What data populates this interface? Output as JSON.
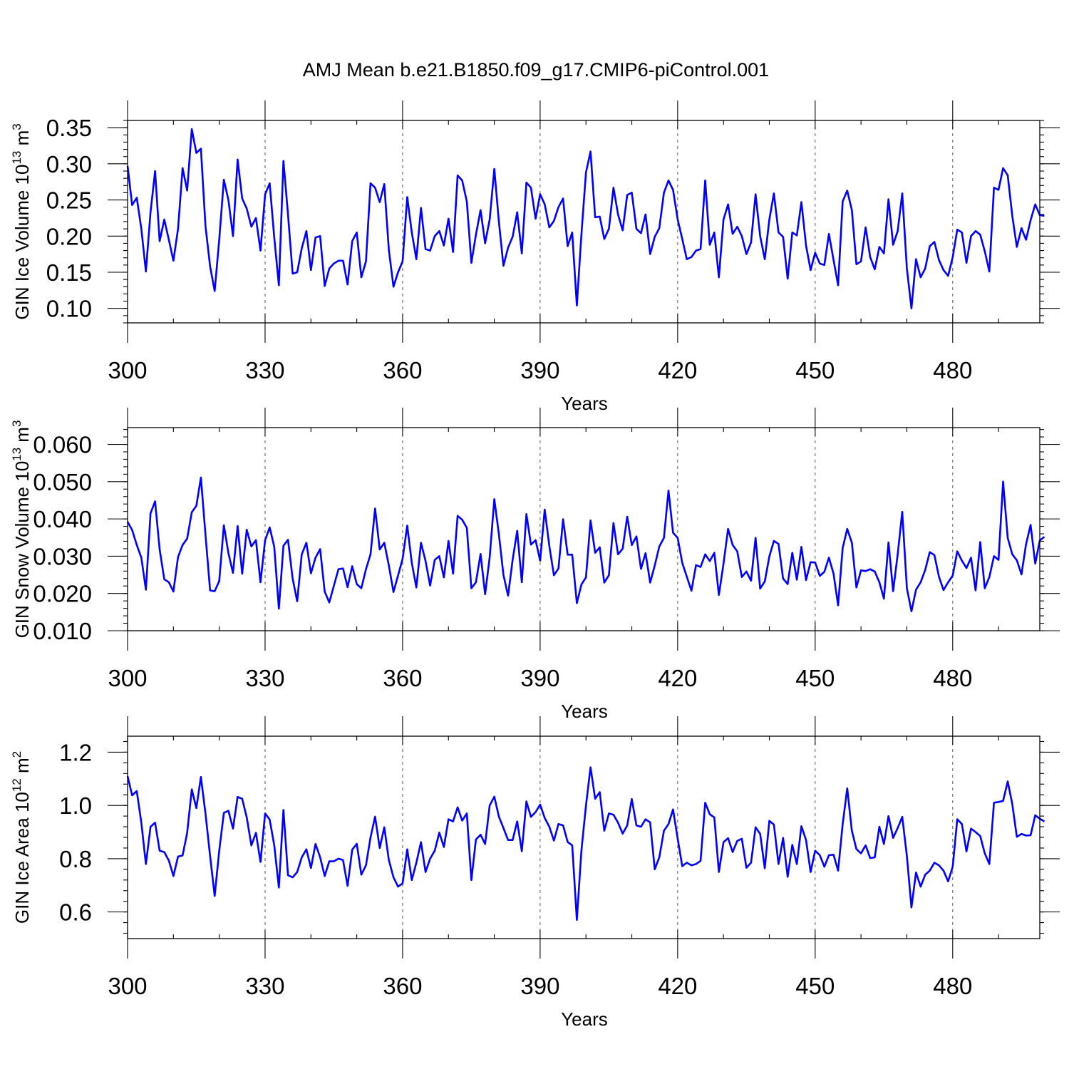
{
  "chart_data": [
    {
      "type": "line",
      "title": "AMJ Mean b.e21.B1850.f09_g17.CMIP6-piControl.001",
      "xlabel": "Years",
      "ylabel": {
        "main": "GIN Ice Volume 10",
        "exp": "13",
        "unit": " m",
        "unitExp": "3"
      },
      "xlim": [
        300,
        499
      ],
      "ylim": [
        0.08,
        0.36
      ],
      "xticks": [
        300,
        330,
        360,
        390,
        420,
        450,
        480
      ],
      "xtickLabels": [
        "300",
        "330",
        "360",
        "390",
        "420",
        "450",
        "480"
      ],
      "yticks": [
        0.1,
        0.15,
        0.2,
        0.25,
        0.3,
        0.35
      ],
      "ytickLabels": [
        "0.10",
        "0.15",
        "0.20",
        "0.25",
        "0.30",
        "0.35"
      ],
      "yMinorStep": 0.01,
      "gridlines": [
        330,
        360,
        390,
        420,
        450,
        480
      ],
      "xstart": 300,
      "values": [
        0.297,
        0.243,
        0.253,
        0.21,
        0.151,
        0.233,
        0.29,
        0.193,
        0.223,
        0.195,
        0.166,
        0.21,
        0.294,
        0.263,
        0.348,
        0.315,
        0.321,
        0.214,
        0.158,
        0.124,
        0.195,
        0.278,
        0.25,
        0.2,
        0.306,
        0.252,
        0.238,
        0.213,
        0.225,
        0.18,
        0.258,
        0.273,
        0.198,
        0.132,
        0.304,
        0.23,
        0.148,
        0.15,
        0.183,
        0.207,
        0.153,
        0.198,
        0.2,
        0.131,
        0.155,
        0.162,
        0.166,
        0.166,
        0.133,
        0.193,
        0.205,
        0.143,
        0.165,
        0.273,
        0.267,
        0.247,
        0.272,
        0.181,
        0.13,
        0.15,
        0.165,
        0.254,
        0.205,
        0.168,
        0.239,
        0.182,
        0.18,
        0.2,
        0.207,
        0.187,
        0.224,
        0.178,
        0.284,
        0.277,
        0.248,
        0.163,
        0.202,
        0.236,
        0.19,
        0.223,
        0.293,
        0.22,
        0.159,
        0.184,
        0.199,
        0.233,
        0.176,
        0.274,
        0.267,
        0.224,
        0.258,
        0.244,
        0.212,
        0.221,
        0.24,
        0.252,
        0.186,
        0.205,
        0.104,
        0.202,
        0.288,
        0.317,
        0.226,
        0.227,
        0.196,
        0.21,
        0.267,
        0.23,
        0.208,
        0.257,
        0.26,
        0.21,
        0.204,
        0.23,
        0.175,
        0.199,
        0.211,
        0.26,
        0.277,
        0.264,
        0.223,
        0.196,
        0.168,
        0.171,
        0.18,
        0.182,
        0.277,
        0.188,
        0.205,
        0.143,
        0.223,
        0.244,
        0.203,
        0.213,
        0.2,
        0.175,
        0.191,
        0.258,
        0.2,
        0.168,
        0.223,
        0.259,
        0.205,
        0.199,
        0.141,
        0.205,
        0.201,
        0.247,
        0.187,
        0.153,
        0.177,
        0.162,
        0.16,
        0.203,
        0.167,
        0.132,
        0.248,
        0.263,
        0.236,
        0.161,
        0.165,
        0.212,
        0.171,
        0.154,
        0.185,
        0.176,
        0.251,
        0.188,
        0.207,
        0.259,
        0.155,
        0.1,
        0.168,
        0.143,
        0.155,
        0.186,
        0.192,
        0.167,
        0.153,
        0.145,
        0.171,
        0.209,
        0.205,
        0.163,
        0.2,
        0.207,
        0.202,
        0.179,
        0.151,
        0.267,
        0.264,
        0.294,
        0.284,
        0.228,
        0.185,
        0.211,
        0.195,
        0.222,
        0.244,
        0.229,
        0.228
      ]
    },
    {
      "type": "line",
      "title": "",
      "xlabel": "Years",
      "ylabel": {
        "main": "GIN Snow Volume 10",
        "exp": "13",
        "unit": " m",
        "unitExp": "3"
      },
      "xlim": [
        300,
        499
      ],
      "ylim": [
        0.01,
        0.0645
      ],
      "xticks": [
        300,
        330,
        360,
        390,
        420,
        450,
        480
      ],
      "xtickLabels": [
        "300",
        "330",
        "360",
        "390",
        "420",
        "450",
        "480"
      ],
      "yticks": [
        0.01,
        0.02,
        0.03,
        0.04,
        0.05,
        0.06
      ],
      "ytickLabels": [
        "0.010",
        "0.020",
        "0.030",
        "0.040",
        "0.050",
        "0.060"
      ],
      "yMinorStep": 0.002,
      "gridlines": [
        330,
        360,
        390,
        420,
        450,
        480
      ],
      "xstart": 300,
      "values": [
        0.0392,
        0.037,
        0.033,
        0.0296,
        0.021,
        0.0415,
        0.0447,
        0.0318,
        0.0238,
        0.023,
        0.0205,
        0.0298,
        0.033,
        0.0347,
        0.0418,
        0.0435,
        0.0511,
        0.0358,
        0.0208,
        0.0206,
        0.0233,
        0.0383,
        0.0308,
        0.0255,
        0.0381,
        0.0253,
        0.0371,
        0.0326,
        0.0343,
        0.023,
        0.0343,
        0.0377,
        0.0325,
        0.0159,
        0.0328,
        0.0344,
        0.024,
        0.0179,
        0.0305,
        0.0336,
        0.0254,
        0.0296,
        0.0319,
        0.0205,
        0.0176,
        0.022,
        0.0265,
        0.0267,
        0.0217,
        0.0273,
        0.0225,
        0.0214,
        0.0265,
        0.0305,
        0.0428,
        0.0318,
        0.0336,
        0.0275,
        0.0204,
        0.0248,
        0.0293,
        0.0382,
        0.0282,
        0.0216,
        0.0336,
        0.0287,
        0.0221,
        0.029,
        0.03,
        0.0243,
        0.0341,
        0.0253,
        0.0408,
        0.0398,
        0.0376,
        0.0214,
        0.023,
        0.0306,
        0.0198,
        0.0297,
        0.0453,
        0.0359,
        0.025,
        0.0194,
        0.029,
        0.0368,
        0.023,
        0.0413,
        0.0331,
        0.0343,
        0.0288,
        0.0425,
        0.0327,
        0.0249,
        0.0267,
        0.0399,
        0.0304,
        0.0304,
        0.0174,
        0.0224,
        0.0243,
        0.0396,
        0.0309,
        0.0324,
        0.0229,
        0.0249,
        0.0389,
        0.0305,
        0.032,
        0.0406,
        0.033,
        0.0353,
        0.0266,
        0.0308,
        0.0229,
        0.0275,
        0.0326,
        0.0349,
        0.0476,
        0.0363,
        0.0349,
        0.0282,
        0.0245,
        0.0207,
        0.0276,
        0.0271,
        0.0305,
        0.0287,
        0.0309,
        0.0196,
        0.028,
        0.0373,
        0.033,
        0.0313,
        0.0244,
        0.0259,
        0.0234,
        0.0349,
        0.0213,
        0.0232,
        0.0299,
        0.0341,
        0.0333,
        0.024,
        0.0225,
        0.0309,
        0.0237,
        0.0325,
        0.0236,
        0.0284,
        0.0283,
        0.0247,
        0.0258,
        0.0296,
        0.0253,
        0.0168,
        0.0322,
        0.0373,
        0.0336,
        0.0216,
        0.0262,
        0.026,
        0.0265,
        0.0259,
        0.023,
        0.0186,
        0.0337,
        0.0206,
        0.0305,
        0.0419,
        0.0214,
        0.0152,
        0.021,
        0.023,
        0.0263,
        0.0311,
        0.0303,
        0.0245,
        0.0209,
        0.023,
        0.0248,
        0.0313,
        0.0288,
        0.0268,
        0.0296,
        0.0208,
        0.0338,
        0.0214,
        0.0244,
        0.03,
        0.029,
        0.05,
        0.0349,
        0.0305,
        0.0289,
        0.0251,
        0.0332,
        0.0384,
        0.028,
        0.0342,
        0.0352
      ]
    },
    {
      "type": "line",
      "title": "",
      "xlabel": "Years",
      "ylabel": {
        "main": "GIN Ice Area 10",
        "exp": "12",
        "unit": " m",
        "unitExp": "2"
      },
      "xlim": [
        300,
        499
      ],
      "ylim": [
        0.5,
        1.26
      ],
      "xticks": [
        300,
        330,
        360,
        390,
        420,
        450,
        480
      ],
      "xtickLabels": [
        "300",
        "330",
        "360",
        "390",
        "420",
        "450",
        "480"
      ],
      "yticks": [
        0.6,
        0.8,
        1.0,
        1.2
      ],
      "ytickLabels": [
        "0.6",
        "0.8",
        "1.0",
        "1.2"
      ],
      "yMinorStep": 0.04,
      "gridlines": [
        330,
        360,
        390,
        420,
        450,
        480
      ],
      "xstart": 300,
      "values": [
        1.11,
        1.038,
        1.054,
        0.935,
        0.78,
        0.92,
        0.935,
        0.83,
        0.825,
        0.793,
        0.735,
        0.808,
        0.812,
        0.897,
        1.06,
        0.99,
        1.107,
        0.97,
        0.81,
        0.66,
        0.83,
        0.972,
        0.98,
        0.913,
        1.032,
        1.025,
        0.955,
        0.85,
        0.897,
        0.788,
        0.97,
        0.947,
        0.85,
        0.692,
        0.983,
        0.738,
        0.73,
        0.75,
        0.805,
        0.835,
        0.765,
        0.855,
        0.805,
        0.735,
        0.79,
        0.79,
        0.8,
        0.795,
        0.698,
        0.834,
        0.856,
        0.74,
        0.775,
        0.88,
        0.958,
        0.84,
        0.918,
        0.795,
        0.73,
        0.695,
        0.707,
        0.835,
        0.72,
        0.785,
        0.862,
        0.75,
        0.8,
        0.83,
        0.898,
        0.844,
        0.948,
        0.94,
        0.993,
        0.943,
        0.97,
        0.72,
        0.872,
        0.89,
        0.855,
        1.0,
        1.033,
        0.958,
        0.915,
        0.87,
        0.87,
        0.94,
        0.828,
        1.015,
        0.957,
        0.975,
        1.003,
        0.953,
        0.92,
        0.868,
        0.93,
        0.925,
        0.863,
        0.85,
        0.57,
        0.83,
        1.0,
        1.143,
        1.025,
        1.05,
        0.905,
        0.97,
        0.965,
        0.935,
        0.894,
        0.925,
        1.024,
        0.925,
        0.92,
        0.948,
        0.936,
        0.76,
        0.805,
        0.905,
        0.93,
        0.985,
        0.875,
        0.772,
        0.785,
        0.775,
        0.78,
        0.792,
        1.01,
        0.967,
        0.955,
        0.75,
        0.862,
        0.877,
        0.825,
        0.867,
        0.875,
        0.766,
        0.785,
        0.918,
        0.893,
        0.764,
        0.942,
        0.928,
        0.78,
        0.878,
        0.732,
        0.852,
        0.78,
        0.922,
        0.87,
        0.75,
        0.83,
        0.813,
        0.77,
        0.813,
        0.815,
        0.755,
        0.93,
        1.064,
        0.905,
        0.836,
        0.82,
        0.85,
        0.802,
        0.805,
        0.92,
        0.855,
        0.96,
        0.878,
        0.915,
        0.957,
        0.81,
        0.617,
        0.748,
        0.695,
        0.74,
        0.755,
        0.785,
        0.775,
        0.755,
        0.715,
        0.77,
        0.948,
        0.93,
        0.827,
        0.913,
        0.9,
        0.885,
        0.82,
        0.78,
        1.01,
        1.013,
        1.017,
        1.09,
        1.005,
        0.882,
        0.893,
        0.887,
        0.888,
        0.963,
        0.95,
        0.94
      ]
    }
  ]
}
